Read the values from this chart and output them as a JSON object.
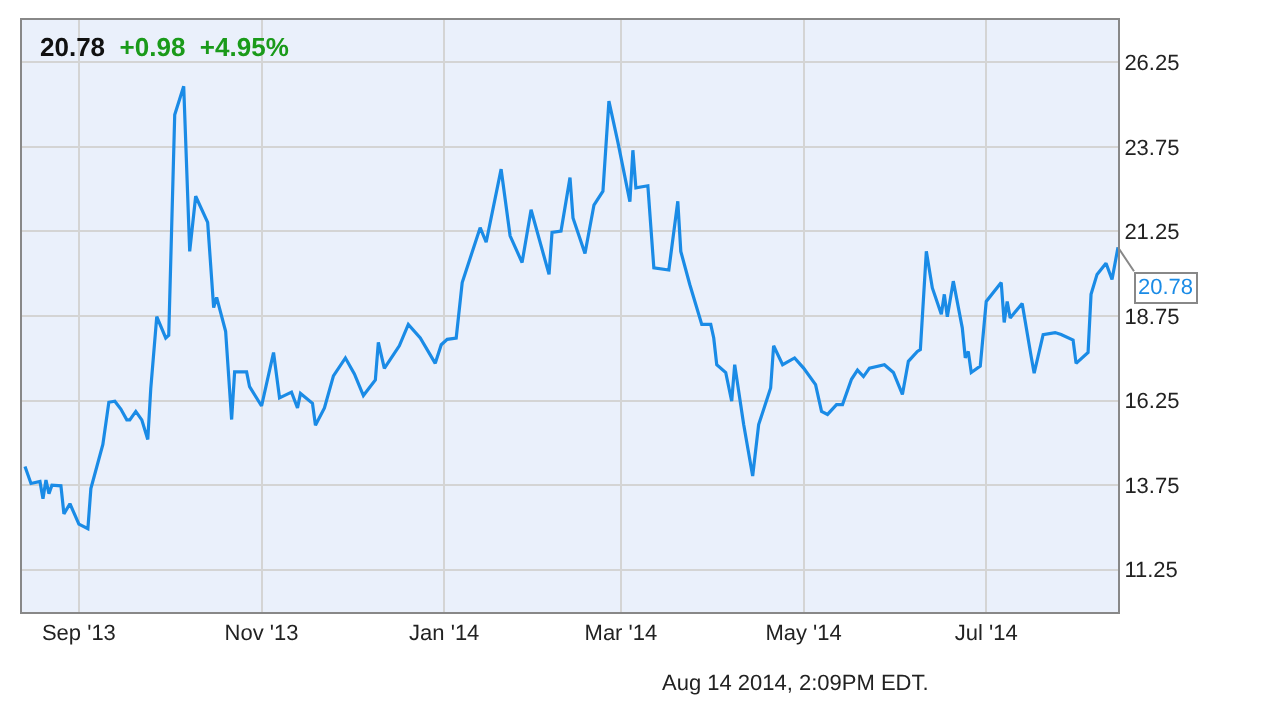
{
  "chart_data": {
    "type": "line",
    "title": "20.78 +0.98 +4.95%",
    "x": [
      "2013-08-14",
      "2013-08-16",
      "2013-08-19",
      "2013-08-20",
      "2013-08-21",
      "2013-08-22",
      "2013-08-23",
      "2013-08-26",
      "2013-08-27",
      "2013-08-29",
      "2013-09-01",
      "2013-09-04",
      "2013-09-05",
      "2013-09-09",
      "2013-09-11",
      "2013-09-13",
      "2013-09-15",
      "2013-09-17",
      "2013-09-18",
      "2013-09-20",
      "2013-09-22",
      "2013-09-24",
      "2013-09-25",
      "2013-09-27",
      "2013-09-30",
      "2013-10-01",
      "2013-10-03",
      "2013-10-06",
      "2013-10-08",
      "2013-10-10",
      "2013-10-14",
      "2013-10-16",
      "2013-10-17",
      "2013-10-20",
      "2013-10-22",
      "2013-10-23",
      "2013-10-27",
      "2013-10-28",
      "2013-11-01",
      "2013-11-05",
      "2013-11-07",
      "2013-11-11",
      "2013-11-13",
      "2013-11-14",
      "2013-11-18",
      "2013-11-19",
      "2013-11-22",
      "2013-11-25",
      "2013-11-29",
      "2013-12-02",
      "2013-12-05",
      "2013-12-09",
      "2013-12-10",
      "2013-12-12",
      "2013-12-17",
      "2013-12-20",
      "2013-12-24",
      "2013-12-29",
      "2013-12-31",
      "2014-01-02",
      "2014-01-05",
      "2014-01-07",
      "2014-01-13",
      "2014-01-15",
      "2014-01-20",
      "2014-01-23",
      "2014-01-27",
      "2014-01-30",
      "2014-02-05",
      "2014-02-06",
      "2014-02-09",
      "2014-02-12",
      "2014-02-13",
      "2014-02-17",
      "2014-02-20",
      "2014-02-23",
      "2014-02-25",
      "2014-02-28",
      "2014-03-04",
      "2014-03-05",
      "2014-03-06",
      "2014-03-10",
      "2014-03-12",
      "2014-03-17",
      "2014-03-20",
      "2014-03-21",
      "2014-03-24",
      "2014-03-26",
      "2014-03-28",
      "2014-03-31",
      "2014-04-01",
      "2014-04-02",
      "2014-04-05",
      "2014-04-07",
      "2014-04-08",
      "2014-04-11",
      "2014-04-14",
      "2014-04-16",
      "2014-04-20",
      "2014-04-21",
      "2014-04-24",
      "2014-04-28",
      "2014-05-01",
      "2014-05-05",
      "2014-05-07",
      "2014-05-09",
      "2014-05-12",
      "2014-05-14",
      "2014-05-17",
      "2014-05-19",
      "2014-05-21",
      "2014-05-23",
      "2014-05-28",
      "2014-05-31",
      "2014-06-03",
      "2014-06-05",
      "2014-06-08",
      "2014-06-09",
      "2014-06-11",
      "2014-06-13",
      "2014-06-16",
      "2014-06-17",
      "2014-06-18",
      "2014-06-20",
      "2014-06-23",
      "2014-06-24",
      "2014-06-25",
      "2014-06-26",
      "2014-06-29",
      "2014-07-01",
      "2014-07-06",
      "2014-07-07",
      "2014-07-08",
      "2014-07-09",
      "2014-07-13",
      "2014-07-16",
      "2014-07-17",
      "2014-07-20",
      "2014-07-24",
      "2014-07-26",
      "2014-07-30",
      "2014-07-31",
      "2014-08-04",
      "2014-08-05",
      "2014-08-07",
      "2014-08-10",
      "2014-08-12",
      "2014-08-14"
    ],
    "series": [
      {
        "color": "#1a8be6",
        "values": [
          14.3,
          13.8,
          13.86,
          13.35,
          13.9,
          13.5,
          13.75,
          13.73,
          12.9,
          13.2,
          12.6,
          12.46,
          13.65,
          14.95,
          16.2,
          16.23,
          16.0,
          15.68,
          15.68,
          15.93,
          15.68,
          15.1,
          16.6,
          18.73,
          18.1,
          18.18,
          24.7,
          25.54,
          20.66,
          22.29,
          21.52,
          19.0,
          19.3,
          18.3,
          15.69,
          17.1,
          17.1,
          16.66,
          16.09,
          17.67,
          16.33,
          16.5,
          16.03,
          16.46,
          16.17,
          15.52,
          16.03,
          16.98,
          17.51,
          17.04,
          16.4,
          16.86,
          17.97,
          17.2,
          17.87,
          18.5,
          18.1,
          17.35,
          17.9,
          18.06,
          18.1,
          19.74,
          21.36,
          20.93,
          23.09,
          21.12,
          20.33,
          21.89,
          19.98,
          21.22,
          21.26,
          22.84,
          21.65,
          20.6,
          22.03,
          22.44,
          25.1,
          23.88,
          22.13,
          23.65,
          22.54,
          22.6,
          20.17,
          20.11,
          22.14,
          20.66,
          19.68,
          19.09,
          18.5,
          18.5,
          18.1,
          17.31,
          17.08,
          16.23,
          17.31,
          15.54,
          14.02,
          15.54,
          16.62,
          17.87,
          17.31,
          17.51,
          17.21,
          16.72,
          15.93,
          15.84,
          16.13,
          16.13,
          16.88,
          17.15,
          16.96,
          17.21,
          17.31,
          17.08,
          16.43,
          17.41,
          17.7,
          17.76,
          20.66,
          19.58,
          18.8,
          19.39,
          18.73,
          19.78,
          18.4,
          17.51,
          17.7,
          17.08,
          17.27,
          19.18,
          19.74,
          18.56,
          19.18,
          18.69,
          19.12,
          17.55,
          17.06,
          18.2,
          18.26,
          18.2,
          18.04,
          17.35,
          17.67,
          19.39,
          19.98,
          20.31,
          19.83,
          20.78
        ]
      }
    ],
    "xlim": [
      "2013-08-13",
      "2014-08-14"
    ],
    "xticks": [
      {
        "value": "2013-09-01",
        "label": "Sep '13"
      },
      {
        "value": "2013-11-01",
        "label": "Nov '13"
      },
      {
        "value": "2014-01-01",
        "label": "Jan '14"
      },
      {
        "value": "2014-03-01",
        "label": "Mar '14"
      },
      {
        "value": "2014-05-01",
        "label": "May '14"
      },
      {
        "value": "2014-07-01",
        "label": "Jul '14"
      }
    ],
    "ylim": [
      10,
      27.5
    ],
    "yticks": [
      {
        "value": 11.25,
        "label": "11.25"
      },
      {
        "value": 13.75,
        "label": "13.75"
      },
      {
        "value": 16.25,
        "label": "16.25"
      },
      {
        "value": 18.75,
        "label": "18.75"
      },
      {
        "value": 21.25,
        "label": "21.25"
      },
      {
        "value": 23.75,
        "label": "23.75"
      },
      {
        "value": 26.25,
        "label": "26.25"
      }
    ],
    "grid": true,
    "marker": "none",
    "line_style": "solid",
    "annotations": [
      {
        "text": "20.78",
        "x": "2014-08-14",
        "y": 20.78
      },
      "Aug 14 2014, 2:09PM EDT."
    ]
  }
}
